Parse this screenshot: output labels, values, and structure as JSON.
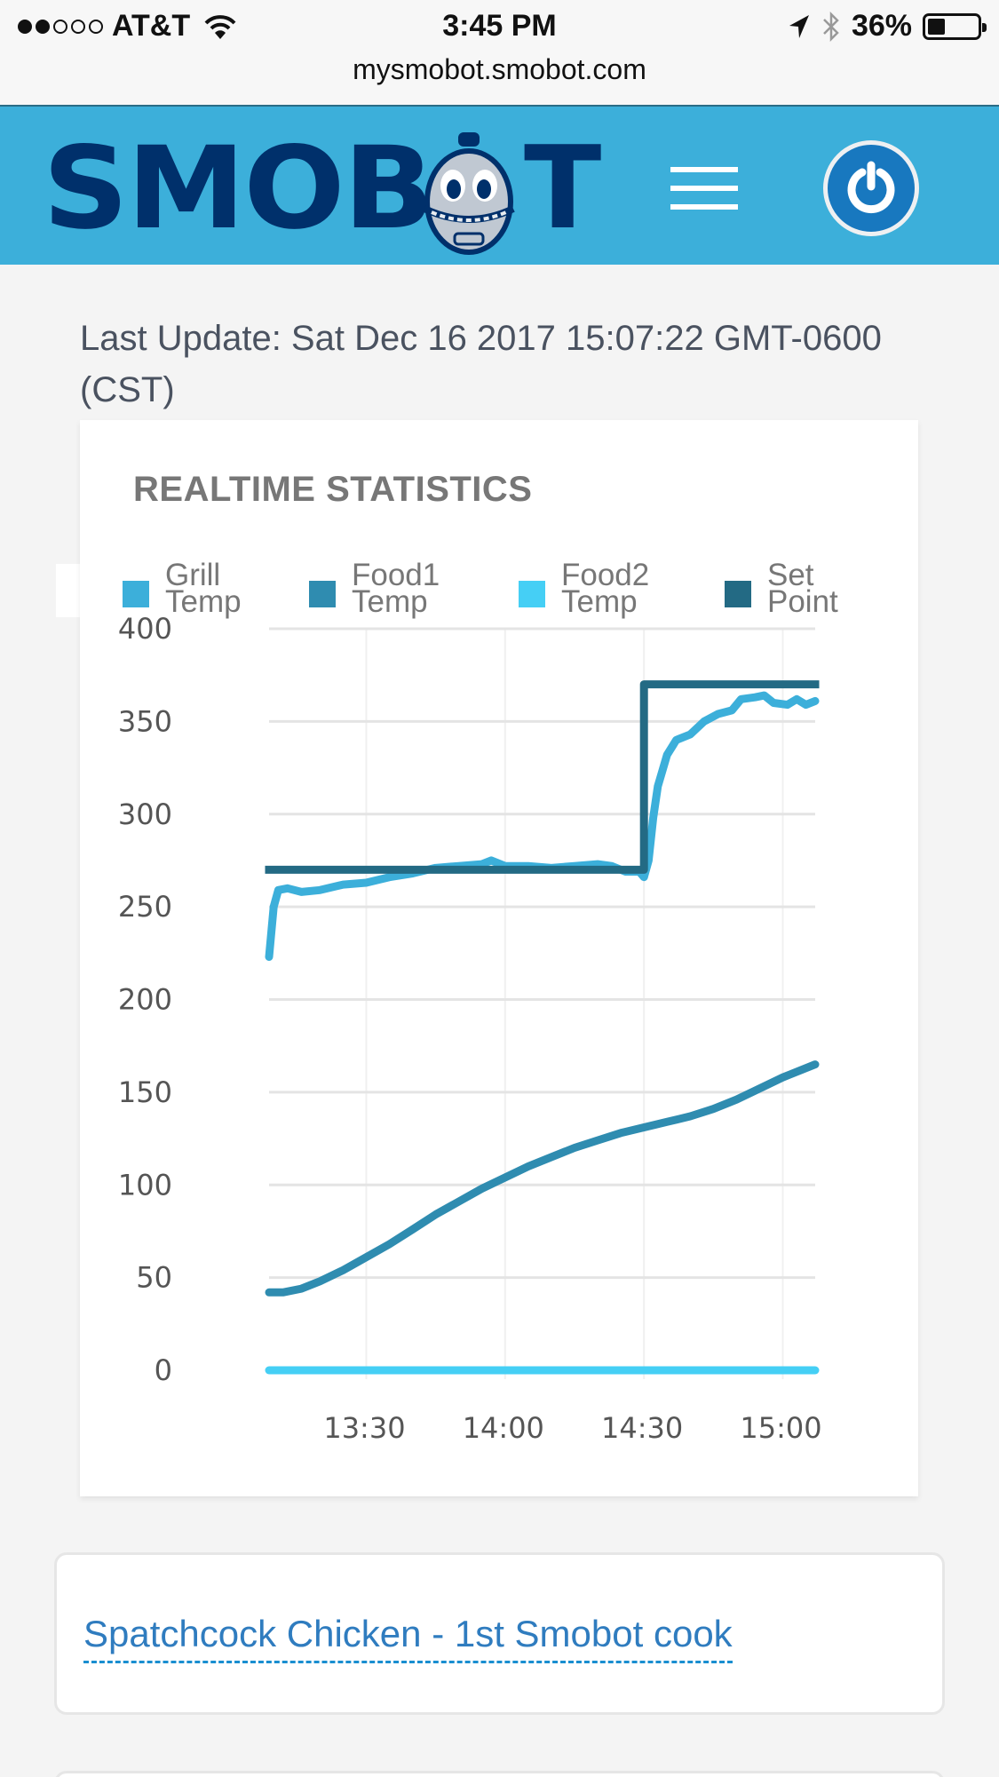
{
  "status_bar": {
    "carrier": "AT&T",
    "signal_bars_filled": 2,
    "signal_bars_total": 5,
    "time": "3:45 PM",
    "battery_percent": "36%",
    "battery_level": 0.36,
    "icons": [
      "wifi-icon",
      "location-arrow-icon",
      "bluetooth-icon",
      "battery-icon"
    ]
  },
  "browser": {
    "url": "mysmobot.smobot.com"
  },
  "header": {
    "brand": "SMOB",
    "brand_tail": "T",
    "menu_icon": "hamburger-icon",
    "power_icon": "power-icon",
    "colors": {
      "bar": "#3cafda",
      "logo": "#00306b",
      "power": "#1878bf"
    }
  },
  "last_update": {
    "text": "Last Update: Sat Dec 16 2017 15:07:22 GMT-0600 (CST)"
  },
  "chart_card": {
    "title": "REALTIME STATISTICS"
  },
  "chart_data": {
    "type": "line",
    "title": "REALTIME STATISTICS",
    "xlabel": "",
    "ylabel": "",
    "x_unit": "time (HH:MM)",
    "x_range": [
      "13:09",
      "15:07"
    ],
    "x_ticks": [
      "13:30",
      "14:00",
      "14:30",
      "15:00"
    ],
    "ylim": [
      0,
      400
    ],
    "y_ticks": [
      0,
      50,
      100,
      150,
      200,
      250,
      300,
      350,
      400
    ],
    "grid": true,
    "legend_position": "top",
    "series": [
      {
        "name": "Grill Temp",
        "legend": [
          "Grill",
          "Temp"
        ],
        "color": "#3cafda",
        "points": [
          [
            "13:09",
            223
          ],
          [
            "13:10",
            250
          ],
          [
            "13:11",
            259
          ],
          [
            "13:13",
            260
          ],
          [
            "13:16",
            258
          ],
          [
            "13:20",
            259
          ],
          [
            "13:25",
            262
          ],
          [
            "13:30",
            263
          ],
          [
            "13:35",
            266
          ],
          [
            "13:40",
            268
          ],
          [
            "13:45",
            271
          ],
          [
            "13:50",
            272
          ],
          [
            "13:55",
            273
          ],
          [
            "13:57",
            275
          ],
          [
            "14:00",
            272
          ],
          [
            "14:05",
            272
          ],
          [
            "14:10",
            271
          ],
          [
            "14:15",
            272
          ],
          [
            "14:20",
            273
          ],
          [
            "14:23",
            272
          ],
          [
            "14:26",
            269
          ],
          [
            "14:29",
            269
          ],
          [
            "14:30",
            266
          ],
          [
            "14:31",
            275
          ],
          [
            "14:32",
            298
          ],
          [
            "14:33",
            315
          ],
          [
            "14:35",
            332
          ],
          [
            "14:37",
            340
          ],
          [
            "14:40",
            343
          ],
          [
            "14:43",
            350
          ],
          [
            "14:46",
            354
          ],
          [
            "14:49",
            356
          ],
          [
            "14:51",
            362
          ],
          [
            "14:54",
            363
          ],
          [
            "14:56",
            364
          ],
          [
            "14:58",
            360
          ],
          [
            "15:01",
            359
          ],
          [
            "15:03",
            362
          ],
          [
            "15:05",
            359
          ],
          [
            "15:07",
            361
          ]
        ]
      },
      {
        "name": "Food1 Temp",
        "legend": [
          "Food1",
          "Temp"
        ],
        "color": "#2f8cb0",
        "points": [
          [
            "13:09",
            42
          ],
          [
            "13:12",
            42
          ],
          [
            "13:16",
            44
          ],
          [
            "13:20",
            48
          ],
          [
            "13:25",
            54
          ],
          [
            "13:30",
            61
          ],
          [
            "13:35",
            68
          ],
          [
            "13:40",
            76
          ],
          [
            "13:45",
            84
          ],
          [
            "13:50",
            91
          ],
          [
            "13:55",
            98
          ],
          [
            "14:00",
            104
          ],
          [
            "14:05",
            110
          ],
          [
            "14:10",
            115
          ],
          [
            "14:15",
            120
          ],
          [
            "14:20",
            124
          ],
          [
            "14:25",
            128
          ],
          [
            "14:30",
            131
          ],
          [
            "14:35",
            134
          ],
          [
            "14:40",
            137
          ],
          [
            "14:45",
            141
          ],
          [
            "14:50",
            146
          ],
          [
            "14:55",
            152
          ],
          [
            "15:00",
            158
          ],
          [
            "15:07",
            165
          ]
        ]
      },
      {
        "name": "Food2 Temp",
        "legend": [
          "Food2",
          "Temp"
        ],
        "color": "#45cff5",
        "points": [
          [
            "13:09",
            0
          ],
          [
            "15:07",
            0
          ]
        ]
      },
      {
        "name": "Set Point",
        "legend": [
          "Set",
          "Point"
        ],
        "color": "#236a84",
        "step": true,
        "points": [
          [
            "13:09",
            270
          ],
          [
            "14:30",
            270
          ],
          [
            "14:30",
            370
          ],
          [
            "15:07",
            370
          ]
        ]
      }
    ]
  },
  "cook_card": {
    "link_text": "Spatchcock Chicken - 1st Smobot cook"
  }
}
